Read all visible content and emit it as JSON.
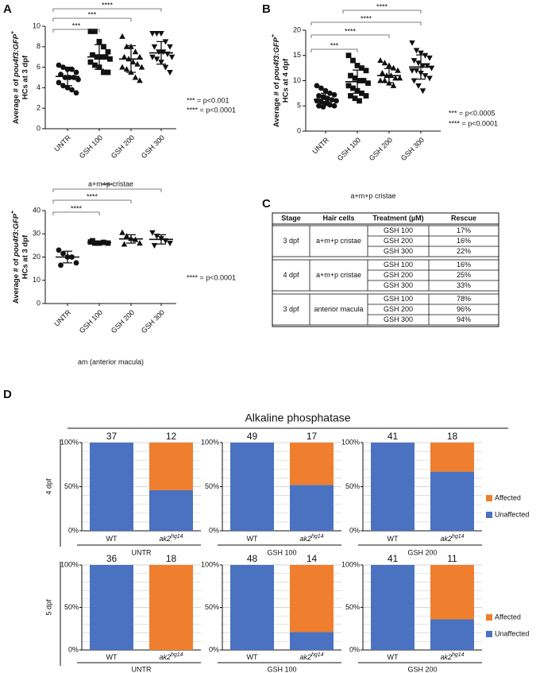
{
  "panels": [
    "A",
    "B",
    "C",
    "D"
  ],
  "chart_data": [
    {
      "type": "dotplot",
      "categories": [
        "UNTR",
        "GSH 100",
        "GSH 200",
        "GSH 300"
      ],
      "markers": [
        "circle",
        "square",
        "triangle",
        "triangle-down"
      ],
      "points": [
        [
          6.2,
          6,
          5.8,
          5.8,
          5.5,
          5.3,
          5,
          5,
          5,
          4.8,
          4.5,
          4.2,
          4,
          3.8,
          3.5
        ],
        [
          9.5,
          9.5,
          8.5,
          8,
          7.5,
          7.2,
          7,
          7,
          7,
          6.8,
          6.5,
          6.2,
          6,
          5.5,
          5.5
        ],
        [
          9,
          8,
          8,
          7.5,
          7,
          7,
          6.8,
          6.5,
          6.3,
          6,
          6,
          5.8,
          5.5,
          5,
          4.7
        ],
        [
          9.3,
          9.3,
          9.3,
          8.5,
          8,
          8,
          7.5,
          7.5,
          7.3,
          7,
          7,
          6.8,
          6.5,
          6,
          5.5
        ]
      ],
      "means": [
        5.1,
        7.0,
        6.8,
        7.4
      ],
      "sd": [
        0.9,
        1.2,
        1.3,
        1.1
      ],
      "ylim": [
        0,
        10
      ],
      "yticks": [
        0,
        2,
        4,
        6,
        8,
        10
      ],
      "ylabel": {
        "prefix": "Average # of ",
        "italic": "pou4f3:GFP",
        "sup": "+",
        "line2": "HCs at 3 dpf"
      },
      "xlabel": "a+m+p cristae",
      "brackets": [
        {
          "from": 0,
          "to": 1,
          "label": "***"
        },
        {
          "from": 0,
          "to": 2,
          "label": "***"
        },
        {
          "from": 0,
          "to": 3,
          "label": "****"
        }
      ],
      "legend": [
        "***  =  p<0.001",
        "****  =  p<0.0001"
      ]
    },
    {
      "type": "dotplot",
      "categories": [
        "UNTR",
        "GSH 100",
        "GSH 200",
        "GSH 300"
      ],
      "markers": [
        "circle",
        "square",
        "triangle",
        "triangle-down"
      ],
      "points": [
        [
          23,
          21.5,
          20,
          20,
          17.5,
          16.5
        ],
        [
          26.5,
          26,
          26,
          26.3,
          26,
          27
        ],
        [
          30.5,
          29,
          28,
          27.5,
          26,
          25.5
        ],
        [
          30.5,
          29,
          28,
          27,
          26,
          25
        ]
      ],
      "means": [
        20,
        26.3,
        27.8,
        27.6
      ],
      "sd": [
        2.5,
        0.5,
        1.8,
        2
      ],
      "ylim": [
        0,
        40
      ],
      "yticks": [
        0,
        10,
        20,
        30,
        40
      ],
      "ylabel": {
        "prefix": "Average # of ",
        "italic": "pou4f3:GFP",
        "sup": "+",
        "line2": "HCs at 3 dpf"
      },
      "xlabel": "am (anterior macula)",
      "brackets": [
        {
          "from": 0,
          "to": 1,
          "label": "****"
        },
        {
          "from": 0,
          "to": 2,
          "label": "****"
        },
        {
          "from": 0,
          "to": 3,
          "label": "****"
        }
      ],
      "legend": [
        "****  =  p<0.0001"
      ]
    },
    {
      "type": "dotplot",
      "categories": [
        "UNTR",
        "GSH 100",
        "GSH 200",
        "GSH 300"
      ],
      "markers": [
        "circle",
        "square",
        "triangle",
        "triangle-down"
      ],
      "points": [
        [
          9,
          8.5,
          8,
          7.5,
          7.2,
          7,
          6.8,
          6.5,
          6.2,
          6,
          6,
          5.8,
          5.5,
          5.2,
          5,
          5,
          4.8,
          5.5
        ],
        [
          15,
          14,
          13,
          12.5,
          12,
          11,
          10.5,
          10,
          10,
          9.5,
          9,
          8.5,
          8,
          7.5,
          7,
          7,
          6.5,
          6
        ],
        [
          14,
          13.5,
          13,
          12.5,
          12,
          11.5,
          11,
          11,
          10.5,
          10.5,
          10,
          10,
          9.5,
          9
        ],
        [
          17.5,
          16,
          15.5,
          15,
          14.5,
          14,
          13.5,
          13,
          13,
          12.5,
          12,
          12,
          11.5,
          11,
          10.5,
          10,
          9,
          8
        ]
      ],
      "means": [
        6.3,
        9.8,
        11,
        12.7
      ],
      "sd": [
        1.2,
        2.3,
        1.4,
        2.4
      ],
      "ylim": [
        0,
        20
      ],
      "yticks": [
        0,
        5,
        10,
        15,
        20
      ],
      "ylabel": {
        "prefix": "Average # of ",
        "italic": "pou4f3:GFP",
        "sup": "+",
        "line2": "HCs at 4 dpf"
      },
      "xlabel": "a+m+p cristae",
      "brackets": [
        {
          "from": 0,
          "to": 1,
          "label": "***"
        },
        {
          "from": 0,
          "to": 2,
          "label": "****"
        },
        {
          "from": 0,
          "to": 3,
          "label": "****"
        },
        {
          "from": 1,
          "to": 3,
          "label": "****"
        }
      ],
      "legend": [
        "***  =  p<0.0005",
        "****  =  p<0.0001"
      ]
    },
    {
      "type": "stacked_bar",
      "title": "Alkaline phosphatase",
      "ylim": [
        0,
        100
      ],
      "yticks": [
        {
          "value": 0,
          "label": "0%"
        },
        {
          "value": 50,
          "label": "50%"
        },
        {
          "value": 100,
          "label": "100%"
        }
      ],
      "groups": [
        "UNTR",
        "GSH 100",
        "GSH 200"
      ],
      "genotypes": [
        {
          "name": "WT"
        },
        {
          "name": "ak2",
          "sup": "hg14"
        }
      ],
      "series": [
        {
          "name": "Unaffected",
          "color": "#4a72c1"
        },
        {
          "name": "Affected",
          "color": "#ef7f2f"
        }
      ],
      "rows": [
        {
          "label": "4 dpf",
          "n": [
            [
              37,
              12
            ],
            [
              49,
              17
            ],
            [
              41,
              18
            ]
          ],
          "unaffected": [
            [
              100,
              46
            ],
            [
              100,
              52
            ],
            [
              100,
              67
            ]
          ],
          "affected": [
            [
              0,
              54
            ],
            [
              0,
              48
            ],
            [
              0,
              33
            ]
          ]
        },
        {
          "label": "5 dpf",
          "n": [
            [
              36,
              18
            ],
            [
              48,
              14
            ],
            [
              41,
              11
            ]
          ],
          "unaffected": [
            [
              100,
              0
            ],
            [
              100,
              21
            ],
            [
              100,
              36
            ]
          ],
          "affected": [
            [
              0,
              100
            ],
            [
              0,
              79
            ],
            [
              0,
              64
            ]
          ]
        }
      ]
    }
  ],
  "table": {
    "header": [
      "Stage",
      "Hair cells",
      "Treatment (µM)",
      "Rescue"
    ],
    "blocks": [
      {
        "stage": "3 dpf",
        "hair_cells": "a+m+p cristae",
        "rows": [
          [
            "GSH 100",
            "17%"
          ],
          [
            "GSH 200",
            "16%"
          ],
          [
            "GSH 300",
            "22%"
          ]
        ]
      },
      {
        "stage": "4 dpf",
        "hair_cells": "a+m+p cristae",
        "rows": [
          [
            "GSH 100",
            "16%"
          ],
          [
            "GSH 200",
            "25%"
          ],
          [
            "GSH 300",
            "33%"
          ]
        ]
      },
      {
        "stage": "3 dpf",
        "hair_cells": "anterior macula",
        "rows": [
          [
            "GSH 100",
            "78%"
          ],
          [
            "GSH 200",
            "96%"
          ],
          [
            "GSH 300",
            "94%"
          ]
        ]
      }
    ]
  }
}
